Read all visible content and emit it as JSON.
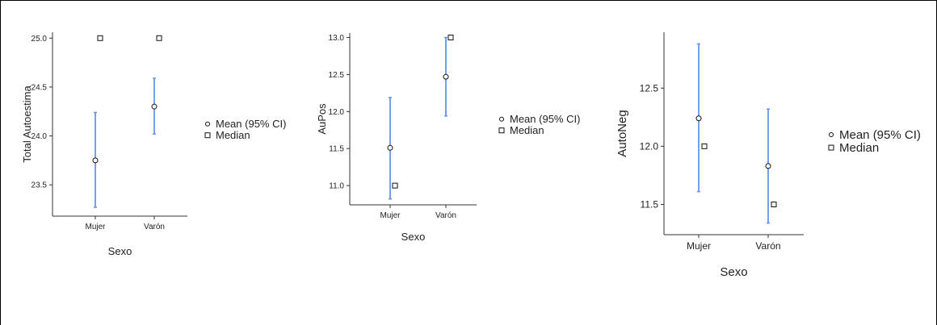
{
  "chart_data": [
    {
      "type": "scatter",
      "title": "",
      "xlabel": "Sexo",
      "ylabel": "Total Autoestima",
      "categories": [
        "Mujer",
        "Varón"
      ],
      "yticks": [
        23.5,
        24.0,
        24.5,
        25.0
      ],
      "ylim": [
        23.18,
        25.06
      ],
      "mean": [
        23.75,
        24.3
      ],
      "ci_low": [
        23.27,
        24.02
      ],
      "ci_high": [
        24.24,
        24.59
      ],
      "median": [
        25.0,
        25.0
      ],
      "legend": [
        "Mean (95% CI)",
        "Median"
      ],
      "legend_position": "right",
      "ci_color": "#6495ED"
    },
    {
      "type": "scatter",
      "title": "",
      "xlabel": "Sexo",
      "ylabel": "AuPos",
      "categories": [
        "Mujer",
        "Varón"
      ],
      "yticks": [
        11.0,
        11.5,
        12.0,
        12.5,
        13.0
      ],
      "ylim": [
        10.74,
        13.06
      ],
      "mean": [
        11.51,
        12.47
      ],
      "ci_low": [
        10.82,
        11.94
      ],
      "ci_high": [
        12.19,
        13.0
      ],
      "median": [
        11.0,
        13.0
      ],
      "legend": [
        "Mean (95% CI)",
        "Median"
      ],
      "legend_position": "right",
      "ci_color": "#6495ED"
    },
    {
      "type": "scatter",
      "title": "",
      "xlabel": "Sexo",
      "ylabel": "AutoNeg",
      "categories": [
        "Mujer",
        "Varón"
      ],
      "yticks": [
        11.5,
        12.0,
        12.5
      ],
      "ylim": [
        11.24,
        12.98
      ],
      "mean": [
        12.24,
        11.83
      ],
      "ci_low": [
        11.61,
        11.34
      ],
      "ci_high": [
        12.88,
        12.32
      ],
      "median": [
        12.0,
        11.5
      ],
      "legend": [
        "Mean (95% CI)",
        "Median"
      ],
      "legend_position": "right",
      "ci_color": "#6495ED"
    }
  ]
}
